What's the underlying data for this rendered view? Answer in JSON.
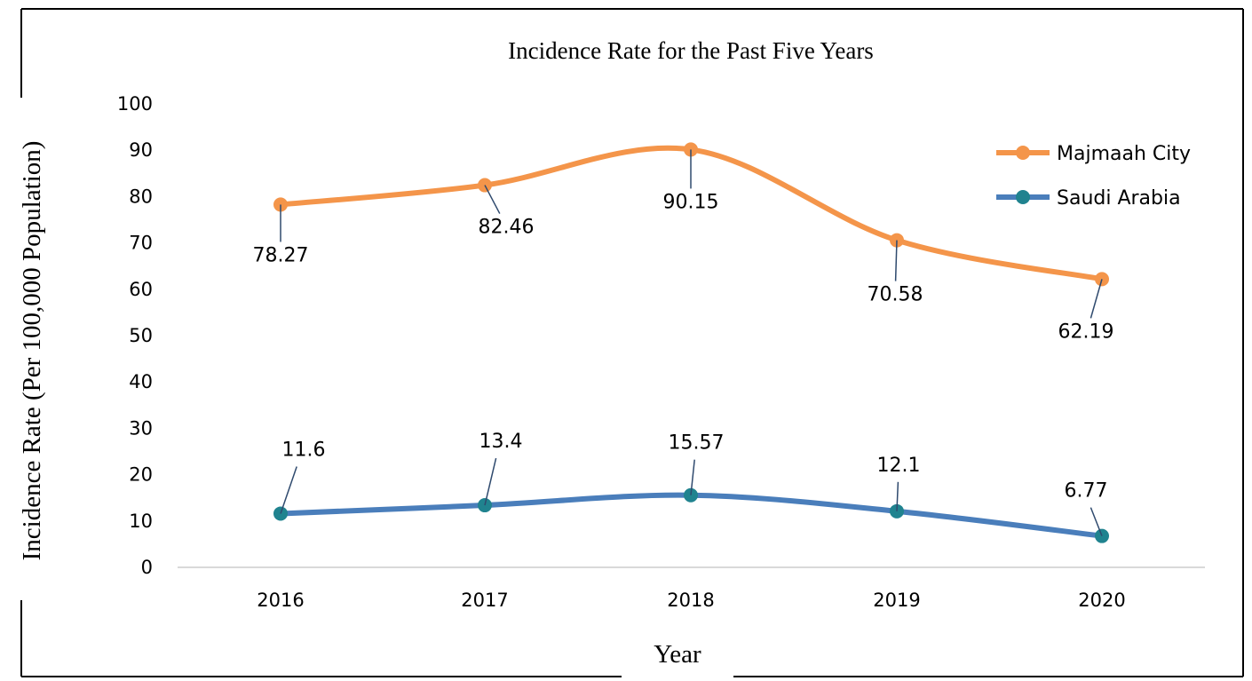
{
  "chart_data": {
    "type": "line",
    "title": "Incidence Rate for the Past Five Years",
    "xlabel": "Year",
    "ylabel": "Incidence Rate (Per 100,000 Population)",
    "categories": [
      "2016",
      "2017",
      "2018",
      "2019",
      "2020"
    ],
    "ylim": [
      0,
      100
    ],
    "yticks": [
      0,
      10,
      20,
      30,
      40,
      50,
      60,
      70,
      80,
      90,
      100
    ],
    "ytick_labels": [
      "0",
      "10",
      "20",
      "30",
      "40",
      "50",
      "60",
      "70",
      "80",
      "90",
      "100"
    ],
    "grid": false,
    "smooth": true,
    "legend_position": "top-right",
    "series": [
      {
        "name": "Majmaah City",
        "color": "#F4954A",
        "values": [
          78.27,
          82.46,
          90.15,
          70.58,
          62.19
        ],
        "labels": [
          "78.27",
          "82.46",
          "90.15",
          "70.58",
          "62.19"
        ]
      },
      {
        "name": "Saudi Arabia",
        "color": "#4A7EBB",
        "marker_color": "#20838F",
        "values": [
          11.6,
          13.4,
          15.57,
          12.1,
          6.77
        ],
        "labels": [
          "11.6",
          "13.4",
          "15.57",
          "12.1",
          "6.77"
        ]
      }
    ]
  }
}
